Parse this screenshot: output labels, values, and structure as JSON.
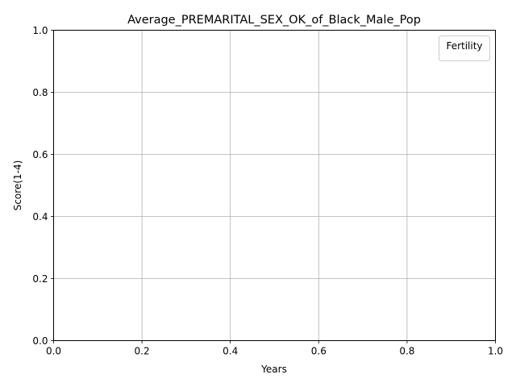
{
  "chart_data": {
    "type": "line",
    "title": "Average_PREMARITAL_SEX_OK_of_Black_Male_Pop",
    "xlabel": "Years",
    "ylabel": "Score(1-4)",
    "xlim": [
      0.0,
      1.0
    ],
    "ylim": [
      0.0,
      1.0
    ],
    "xticks": [
      "0.0",
      "0.2",
      "0.4",
      "0.6",
      "0.8",
      "1.0"
    ],
    "yticks": [
      "0.0",
      "0.2",
      "0.4",
      "0.6",
      "0.8",
      "1.0"
    ],
    "grid": true,
    "legend": {
      "title": "Fertility",
      "placement": "top-right",
      "entries": []
    },
    "series": []
  },
  "colors": {
    "grid": "#b0b0b0",
    "axis": "#000000",
    "legend_border": "#cccccc"
  }
}
